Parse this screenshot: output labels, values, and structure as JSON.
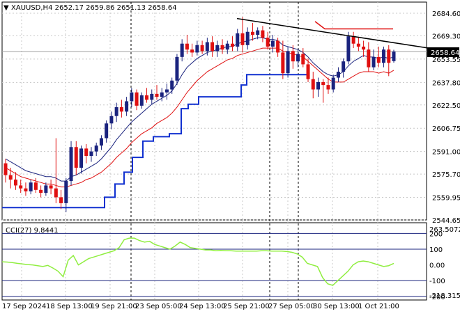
{
  "header": {
    "symbol_line": "XAUUSD,H4  2652.17 2659.86 2651.13 2658.64"
  },
  "indicator": {
    "label": "CCI(27) 9.8441",
    "max_label": "263.5072",
    "min_label": "-218.3159",
    "levels": [
      "200",
      "100",
      "0.00",
      "-100",
      "-200"
    ]
  },
  "colors": {
    "bull": "#1a237e",
    "bear": "#e01010",
    "ma_fast": "#1a237e",
    "ma_slow": "#e01010",
    "support": "#1030d0",
    "trend": "#000000",
    "cci": "#90ee40",
    "current_price_bg": "#000000",
    "level_line": "#1a237e"
  },
  "chart_data": {
    "type": "candlestick",
    "y_range": [
      2544.65,
      2692.0
    ],
    "y_ticks": [
      "2684.60",
      "2669.30",
      "2653.55",
      "2637.80",
      "2622.50",
      "2606.75",
      "2591.00",
      "2575.70",
      "2559.95",
      "2544.65"
    ],
    "current_price": "2658.64",
    "x_labels": [
      "17 Sep 2024",
      "18 Sep 13:00",
      "19 Sep 21:00",
      "23 Sep 05:00",
      "24 Sep 13:00",
      "25 Sep 21:00",
      "27 Sep 05:00",
      "30 Sep 13:00",
      "1 Oct 21:00"
    ],
    "candles": [
      {
        "o": 2583,
        "h": 2586,
        "l": 2570,
        "c": 2575
      },
      {
        "o": 2575,
        "h": 2580,
        "l": 2566,
        "c": 2572
      },
      {
        "o": 2572,
        "h": 2577,
        "l": 2565,
        "c": 2568
      },
      {
        "o": 2568,
        "h": 2572,
        "l": 2563,
        "c": 2566
      },
      {
        "o": 2566,
        "h": 2570,
        "l": 2561,
        "c": 2564
      },
      {
        "o": 2564,
        "h": 2572,
        "l": 2562,
        "c": 2570
      },
      {
        "o": 2570,
        "h": 2573,
        "l": 2563,
        "c": 2565
      },
      {
        "o": 2565,
        "h": 2568,
        "l": 2560,
        "c": 2563
      },
      {
        "o": 2563,
        "h": 2570,
        "l": 2561,
        "c": 2568
      },
      {
        "o": 2568,
        "h": 2572,
        "l": 2562,
        "c": 2566
      },
      {
        "o": 2566,
        "h": 2600,
        "l": 2556,
        "c": 2560
      },
      {
        "o": 2560,
        "h": 2565,
        "l": 2552,
        "c": 2556
      },
      {
        "o": 2556,
        "h": 2573,
        "l": 2550,
        "c": 2571
      },
      {
        "o": 2571,
        "h": 2598,
        "l": 2568,
        "c": 2594
      },
      {
        "o": 2594,
        "h": 2598,
        "l": 2575,
        "c": 2580
      },
      {
        "o": 2580,
        "h": 2595,
        "l": 2576,
        "c": 2593
      },
      {
        "o": 2593,
        "h": 2596,
        "l": 2583,
        "c": 2588
      },
      {
        "o": 2588,
        "h": 2594,
        "l": 2584,
        "c": 2591
      },
      {
        "o": 2591,
        "h": 2597,
        "l": 2588,
        "c": 2595
      },
      {
        "o": 2595,
        "h": 2602,
        "l": 2592,
        "c": 2600
      },
      {
        "o": 2600,
        "h": 2612,
        "l": 2597,
        "c": 2610
      },
      {
        "o": 2610,
        "h": 2618,
        "l": 2606,
        "c": 2615
      },
      {
        "o": 2615,
        "h": 2624,
        "l": 2611,
        "c": 2621
      },
      {
        "o": 2621,
        "h": 2626,
        "l": 2614,
        "c": 2618
      },
      {
        "o": 2618,
        "h": 2628,
        "l": 2615,
        "c": 2625
      },
      {
        "o": 2625,
        "h": 2634,
        "l": 2621,
        "c": 2631
      },
      {
        "o": 2631,
        "h": 2633,
        "l": 2619,
        "c": 2622
      },
      {
        "o": 2622,
        "h": 2631,
        "l": 2620,
        "c": 2629
      },
      {
        "o": 2629,
        "h": 2634,
        "l": 2624,
        "c": 2626
      },
      {
        "o": 2626,
        "h": 2633,
        "l": 2623,
        "c": 2630
      },
      {
        "o": 2630,
        "h": 2636,
        "l": 2626,
        "c": 2628
      },
      {
        "o": 2628,
        "h": 2634,
        "l": 2625,
        "c": 2631
      },
      {
        "o": 2631,
        "h": 2637,
        "l": 2626,
        "c": 2633
      },
      {
        "o": 2633,
        "h": 2641,
        "l": 2630,
        "c": 2639
      },
      {
        "o": 2639,
        "h": 2657,
        "l": 2636,
        "c": 2655
      },
      {
        "o": 2655,
        "h": 2667,
        "l": 2652,
        "c": 2664
      },
      {
        "o": 2664,
        "h": 2670,
        "l": 2657,
        "c": 2660
      },
      {
        "o": 2660,
        "h": 2664,
        "l": 2655,
        "c": 2658
      },
      {
        "o": 2658,
        "h": 2666,
        "l": 2656,
        "c": 2663
      },
      {
        "o": 2663,
        "h": 2666,
        "l": 2657,
        "c": 2659
      },
      {
        "o": 2659,
        "h": 2668,
        "l": 2656,
        "c": 2665
      },
      {
        "o": 2665,
        "h": 2669,
        "l": 2655,
        "c": 2659
      },
      {
        "o": 2659,
        "h": 2666,
        "l": 2655,
        "c": 2663
      },
      {
        "o": 2663,
        "h": 2667,
        "l": 2657,
        "c": 2660
      },
      {
        "o": 2660,
        "h": 2666,
        "l": 2657,
        "c": 2664
      },
      {
        "o": 2664,
        "h": 2669,
        "l": 2659,
        "c": 2662
      },
      {
        "o": 2662,
        "h": 2674,
        "l": 2659,
        "c": 2671
      },
      {
        "o": 2671,
        "h": 2682,
        "l": 2658,
        "c": 2663
      },
      {
        "o": 2663,
        "h": 2675,
        "l": 2660,
        "c": 2672
      },
      {
        "o": 2672,
        "h": 2678,
        "l": 2666,
        "c": 2670
      },
      {
        "o": 2670,
        "h": 2675,
        "l": 2667,
        "c": 2673
      },
      {
        "o": 2673,
        "h": 2676,
        "l": 2665,
        "c": 2668
      },
      {
        "o": 2668,
        "h": 2672,
        "l": 2660,
        "c": 2662
      },
      {
        "o": 2662,
        "h": 2670,
        "l": 2658,
        "c": 2666
      },
      {
        "o": 2666,
        "h": 2668,
        "l": 2655,
        "c": 2658
      },
      {
        "o": 2658,
        "h": 2666,
        "l": 2640,
        "c": 2644
      },
      {
        "o": 2644,
        "h": 2662,
        "l": 2641,
        "c": 2659
      },
      {
        "o": 2659,
        "h": 2663,
        "l": 2647,
        "c": 2652
      },
      {
        "o": 2652,
        "h": 2660,
        "l": 2648,
        "c": 2657
      },
      {
        "o": 2657,
        "h": 2661,
        "l": 2648,
        "c": 2650
      },
      {
        "o": 2650,
        "h": 2654,
        "l": 2638,
        "c": 2640
      },
      {
        "o": 2640,
        "h": 2645,
        "l": 2627,
        "c": 2633
      },
      {
        "o": 2633,
        "h": 2641,
        "l": 2628,
        "c": 2638
      },
      {
        "o": 2638,
        "h": 2640,
        "l": 2624,
        "c": 2636
      },
      {
        "o": 2636,
        "h": 2641,
        "l": 2630,
        "c": 2633
      },
      {
        "o": 2633,
        "h": 2643,
        "l": 2631,
        "c": 2641
      },
      {
        "o": 2641,
        "h": 2648,
        "l": 2638,
        "c": 2645
      },
      {
        "o": 2645,
        "h": 2654,
        "l": 2641,
        "c": 2652
      },
      {
        "o": 2652,
        "h": 2672,
        "l": 2650,
        "c": 2669
      },
      {
        "o": 2669,
        "h": 2672,
        "l": 2661,
        "c": 2664
      },
      {
        "o": 2664,
        "h": 2668,
        "l": 2659,
        "c": 2662
      },
      {
        "o": 2662,
        "h": 2666,
        "l": 2655,
        "c": 2660
      },
      {
        "o": 2660,
        "h": 2665,
        "l": 2645,
        "c": 2648
      },
      {
        "o": 2648,
        "h": 2660,
        "l": 2646,
        "c": 2655
      },
      {
        "o": 2655,
        "h": 2662,
        "l": 2648,
        "c": 2651
      },
      {
        "o": 2651,
        "h": 2662,
        "l": 2648,
        "c": 2660
      },
      {
        "o": 2660,
        "h": 2663,
        "l": 2642,
        "c": 2651
      },
      {
        "o": 2652.17,
        "h": 2659.86,
        "l": 2651.13,
        "c": 2658.64
      }
    ],
    "ma_fast": [
      2586,
      2584,
      2582,
      2580,
      2578,
      2577,
      2576,
      2575,
      2574,
      2574,
      2573,
      2571,
      2571,
      2574,
      2575,
      2577,
      2579,
      2581,
      2583,
      2586,
      2590,
      2594,
      2599,
      2603,
      2607,
      2611,
      2614,
      2617,
      2620,
      2623,
      2625,
      2627,
      2629,
      2632,
      2637,
      2643,
      2648,
      2651,
      2654,
      2656,
      2658,
      2659,
      2660,
      2661,
      2662,
      2662,
      2664,
      2665,
      2666,
      2667,
      2668,
      2668,
      2667,
      2667,
      2666,
      2663,
      2662,
      2661,
      2660,
      2658,
      2655,
      2651,
      2648,
      2645,
      2643,
      2642,
      2643,
      2645,
      2649,
      2652,
      2654,
      2656,
      2655,
      2655,
      2654,
      2655,
      2654,
      2655
    ],
    "ma_slow": [
      2580,
      2578,
      2576,
      2574,
      2573,
      2572,
      2571,
      2570,
      2569,
      2569,
      2568,
      2567,
      2567,
      2568,
      2569,
      2570,
      2572,
      2573,
      2575,
      2577,
      2580,
      2583,
      2587,
      2590,
      2593,
      2597,
      2600,
      2603,
      2605,
      2607,
      2610,
      2612,
      2614,
      2617,
      2621,
      2626,
      2631,
      2635,
      2639,
      2642,
      2645,
      2647,
      2649,
      2651,
      2653,
      2654,
      2656,
      2657,
      2658,
      2659,
      2660,
      2661,
      2661,
      2661,
      2661,
      2659,
      2658,
      2657,
      2656,
      2655,
      2652,
      2649,
      2646,
      2643,
      2640,
      2638,
      2638,
      2638,
      2640,
      2642,
      2644,
      2645,
      2645,
      2645,
      2644,
      2645,
      2644,
      2646
    ],
    "support_steps": [
      {
        "from": 0,
        "to": 34,
        "level": 2553
      },
      {
        "from": 34,
        "to": 37,
        "level": 2560
      },
      {
        "from": 37,
        "to": 40,
        "level": 2577
      },
      {
        "from": 40,
        "to": 43,
        "level": 2590
      },
      {
        "from": 43,
        "to": 46,
        "level": 2600
      },
      {
        "from": 46,
        "to": 49,
        "level": 2603
      },
      {
        "from": 49,
        "to": 52,
        "level": 2605
      },
      {
        "from": 52,
        "to": 55,
        "level": 2620
      },
      {
        "from": 55,
        "to": 58,
        "level": 2623
      },
      {
        "from": 58,
        "to": 61,
        "level": 2630
      },
      {
        "from": 61,
        "to": 64,
        "level": 2632
      },
      {
        "from": 64,
        "to": 72,
        "level": 2637
      },
      {
        "from": 72,
        "to": 94,
        "level": 2643
      }
    ],
    "trendline": [
      {
        "i": 44,
        "p": 2681
      },
      {
        "i": 80,
        "p": 2662
      }
    ],
    "red_marker": [
      {
        "i": 58,
        "p": 2678
      },
      {
        "i": 60,
        "p": 2674
      },
      {
        "i": 72,
        "p": 2674
      }
    ],
    "vlines_at": [
      24,
      54,
      70
    ],
    "cci": {
      "range": [
        -218.3159,
        263.5072
      ],
      "values": [
        20,
        18,
        15,
        10,
        6,
        2,
        0,
        -5,
        -10,
        -3,
        -20,
        -40,
        -75,
        30,
        60,
        0,
        20,
        40,
        50,
        60,
        70,
        80,
        90,
        110,
        160,
        170,
        170,
        155,
        145,
        150,
        130,
        120,
        110,
        100,
        120,
        145,
        130,
        110,
        105,
        100,
        95,
        95,
        90,
        92,
        90,
        90,
        88,
        88,
        88,
        88,
        88,
        90,
        90,
        88,
        88,
        88,
        85,
        80,
        70,
        50,
        10,
        0,
        -10,
        -80,
        -120,
        -130,
        -100,
        -70,
        -40,
        0,
        20,
        25,
        20,
        10,
        0,
        -10,
        -5,
        9.8
      ]
    }
  }
}
